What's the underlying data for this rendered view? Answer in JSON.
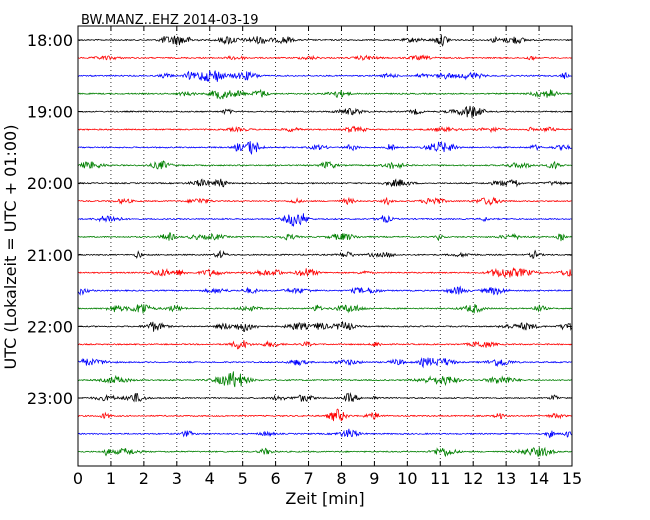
{
  "chart_data": {
    "type": "line",
    "title": "BW.MANZ..EHZ 2014-03-19",
    "xlabel": "Zeit  [min]",
    "ylabel": "UTC (Lokalzeit = UTC + 01:00)",
    "xlim": [
      0,
      15
    ],
    "x_ticks": [
      "0",
      "1",
      "2",
      "3",
      "4",
      "5",
      "6",
      "7",
      "8",
      "9",
      "10",
      "11",
      "12",
      "13",
      "14",
      "15"
    ],
    "y_ticks": [
      "18:00",
      "19:00",
      "20:00",
      "21:00",
      "22:00",
      "23:00"
    ],
    "trace_start_minutes_utc": [
      "18:00",
      "18:15",
      "18:30",
      "18:45",
      "19:00",
      "19:15",
      "19:30",
      "19:45",
      "20:00",
      "20:15",
      "20:30",
      "20:45",
      "21:00",
      "21:15",
      "21:30",
      "21:45",
      "22:00",
      "22:15",
      "22:30",
      "22:45",
      "23:00",
      "23:15",
      "23:30",
      "23:45"
    ],
    "trace_colors": [
      "#000000",
      "#ff0000",
      "#0000ff",
      "#008000"
    ],
    "grid": "x-dotted",
    "series": []
  }
}
